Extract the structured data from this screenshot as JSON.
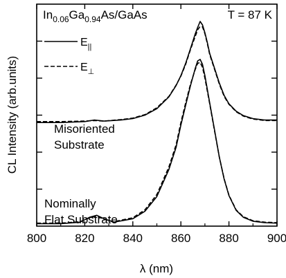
{
  "chart_data": {
    "type": "line",
    "title": {
      "material_base": "In",
      "in_fraction": "0.06",
      "ga": "Ga",
      "ga_fraction": "0.94",
      "rest": "As/GaAs"
    },
    "temperature_label": "T = 87 K",
    "xlabel": "λ (nm)",
    "ylabel": "CL Intensity (arb.units)",
    "xlim": [
      800,
      900
    ],
    "ylim": [
      0,
      4.5
    ],
    "x_ticks": [
      800,
      820,
      840,
      860,
      880,
      900
    ],
    "x_tick_labels": [
      "800",
      "820",
      "840",
      "860",
      "880",
      "900"
    ],
    "y_tick_labels": [],
    "grid": false,
    "legend": {
      "placement": "top-left",
      "entries": [
        {
          "label_main": "E",
          "label_sub": "||",
          "style": "solid"
        },
        {
          "label_main": "E",
          "label_sub": "⊥",
          "style": "dashed"
        }
      ]
    },
    "annotations": [
      {
        "lines": [
          "Misoriented",
          "Substrate"
        ]
      },
      {
        "lines": [
          "Nominally",
          "Flat Substrate"
        ]
      }
    ],
    "series": [
      {
        "group": "Misoriented Substrate",
        "polarization": "E_parallel",
        "style": "solid",
        "x": [
          800,
          810,
          820,
          824,
          828,
          835,
          840,
          845,
          850,
          855,
          858,
          860,
          862,
          864,
          866,
          867,
          868,
          869,
          870,
          871,
          872,
          874,
          876,
          878,
          880,
          883,
          886,
          890,
          895,
          900
        ],
        "values": [
          2.1,
          2.1,
          2.12,
          2.15,
          2.13,
          2.15,
          2.18,
          2.25,
          2.38,
          2.62,
          2.85,
          3.05,
          3.3,
          3.6,
          3.9,
          4.03,
          4.15,
          4.08,
          3.92,
          3.72,
          3.5,
          3.2,
          2.9,
          2.65,
          2.48,
          2.33,
          2.24,
          2.18,
          2.15,
          2.15
        ]
      },
      {
        "group": "Misoriented Substrate",
        "polarization": "E_perpendicular",
        "style": "dashed",
        "x": [
          800,
          810,
          820,
          824,
          828,
          835,
          840,
          845,
          850,
          855,
          858,
          860,
          862,
          864,
          866,
          867,
          868,
          869,
          870,
          871,
          872,
          874,
          876,
          878,
          880,
          883,
          886,
          890,
          895,
          900
        ],
        "values": [
          2.12,
          2.12,
          2.13,
          2.14,
          2.13,
          2.16,
          2.19,
          2.26,
          2.4,
          2.63,
          2.86,
          3.04,
          3.28,
          3.58,
          3.85,
          3.98,
          4.05,
          4.04,
          3.9,
          3.7,
          3.48,
          3.18,
          2.88,
          2.63,
          2.47,
          2.32,
          2.23,
          2.17,
          2.14,
          2.14
        ]
      },
      {
        "group": "Nominally Flat Substrate",
        "polarization": "E_parallel",
        "style": "solid",
        "x": [
          800,
          810,
          818,
          822,
          825,
          828,
          832,
          840,
          845,
          850,
          855,
          858,
          860,
          862,
          864,
          866,
          867,
          868,
          869,
          870,
          872,
          874,
          876,
          878,
          880,
          883,
          886,
          890,
          895,
          900
        ],
        "values": [
          0.05,
          0.05,
          0.08,
          0.18,
          0.22,
          0.15,
          0.08,
          0.15,
          0.3,
          0.6,
          1.15,
          1.6,
          2.05,
          2.45,
          2.85,
          3.2,
          3.35,
          3.38,
          3.28,
          3.05,
          2.5,
          1.95,
          1.4,
          0.95,
          0.62,
          0.32,
          0.18,
          0.1,
          0.07,
          0.06
        ]
      },
      {
        "group": "Nominally Flat Substrate",
        "polarization": "E_perpendicular",
        "style": "dashed",
        "x": [
          800,
          810,
          818,
          822,
          825,
          828,
          832,
          840,
          845,
          850,
          855,
          858,
          860,
          862,
          864,
          866,
          867,
          868,
          869,
          870,
          872,
          874,
          876,
          878,
          880,
          883,
          886,
          890,
          895,
          900
        ],
        "values": [
          0.06,
          0.06,
          0.09,
          0.17,
          0.2,
          0.14,
          0.09,
          0.17,
          0.33,
          0.64,
          1.2,
          1.65,
          2.1,
          2.5,
          2.88,
          3.18,
          3.3,
          3.32,
          3.22,
          3.0,
          2.48,
          1.93,
          1.4,
          0.96,
          0.63,
          0.33,
          0.19,
          0.11,
          0.08,
          0.07
        ]
      }
    ]
  }
}
